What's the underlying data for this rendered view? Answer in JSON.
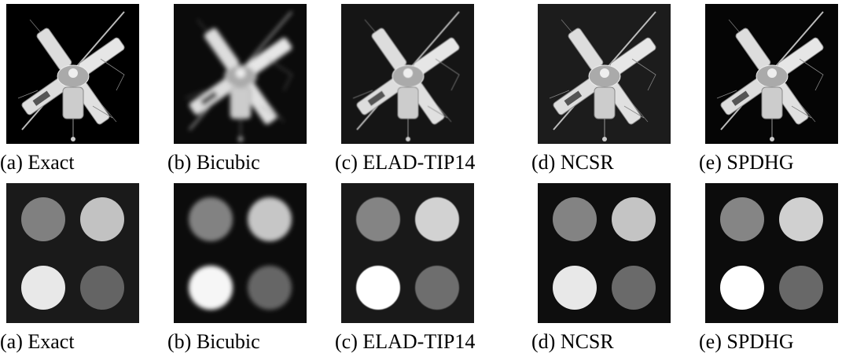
{
  "figure": {
    "rows": [
      {
        "panels": [
          {
            "caption": "(a) Exact"
          },
          {
            "caption": "(b) Bicubic"
          },
          {
            "caption": "(c) ELAD-TIP14"
          },
          {
            "caption": "(d) NCSR"
          },
          {
            "caption": "(e) SPDHG"
          }
        ]
      },
      {
        "panels": [
          {
            "caption": "(a) Exact"
          },
          {
            "caption": "(b) Bicubic"
          },
          {
            "caption": "(c) ELAD-TIP14"
          },
          {
            "caption": "(d) NCSR"
          },
          {
            "caption": "(e) SPDHG"
          }
        ]
      }
    ]
  }
}
